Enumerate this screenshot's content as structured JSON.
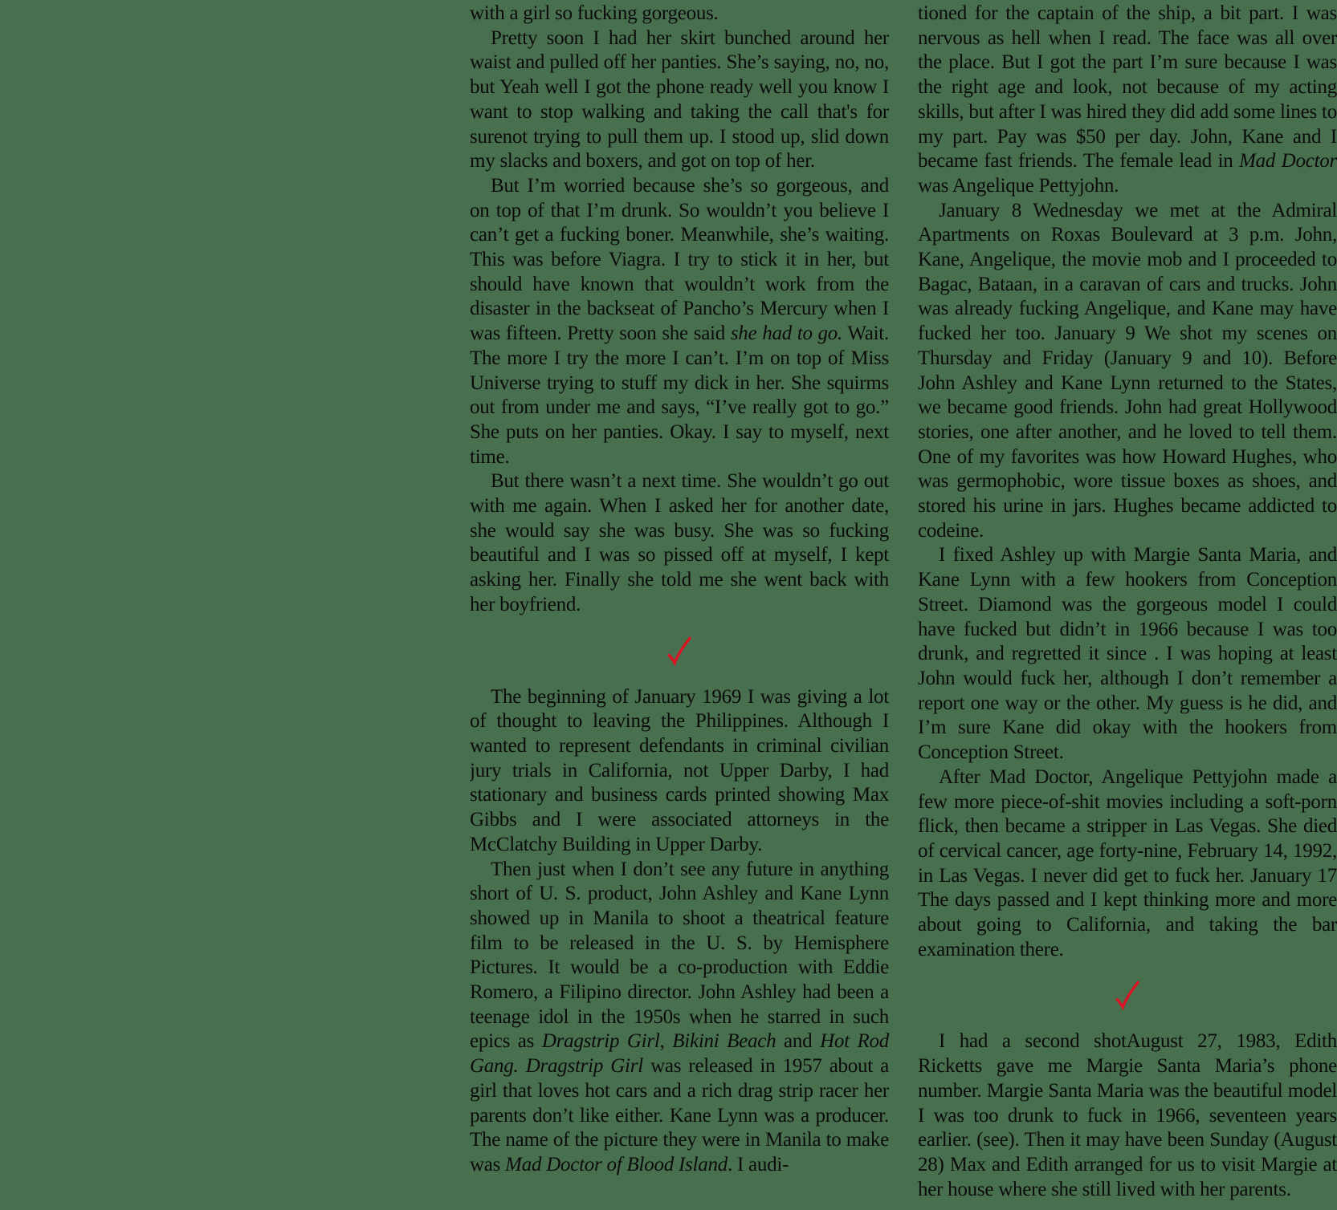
{
  "page": {
    "background_color": "#48704F",
    "text_color": "#0B0B0B",
    "checkmark_color": "#D91523",
    "checkmark_icon": "handwritten-red-checkmark"
  },
  "columns": {
    "left": {
      "blocks": [
        {
          "type": "paragraph",
          "indent": false,
          "segments": [
            {
              "text": "with a girl so fucking gorgeous."
            }
          ]
        },
        {
          "type": "paragraph",
          "indent": true,
          "segments": [
            {
              "text": "Pretty soon I had her skirt bunched around her waist and pulled off her panties. She’s saying, no, no, but Yeah well I got the phone ready well you know I want to stop walking and taking the call that's for surenot trying to pull them up. I stood up, slid down my slacks and boxers, and got on top of her."
            }
          ]
        },
        {
          "type": "paragraph",
          "indent": true,
          "segments": [
            {
              "text": "But I’m worried because she’s so gorgeous, and on top of that I’m drunk. So wouldn’t you believe I can’t get a fucking boner. Meanwhile, she’s waiting. This was before Viagra. I try to stick it in her, but should have known that wouldn’t work from the disaster in the backseat of Pancho’s Mercury when I was fifteen. Pretty soon she said "
            },
            {
              "text": "she had to go.",
              "italic": true
            },
            {
              "text": " Wait. The more I try the more I can’t. I’m on top of Miss Universe trying to stuff my dick in her. She squirms out from under me and says, “I’ve really got to go.” She puts on her panties. Okay. I say to myself, next time."
            }
          ]
        },
        {
          "type": "paragraph",
          "indent": true,
          "segments": [
            {
              "text": "But there wasn’t a next time. She wouldn’t go out with me again. When I asked her for another date, she would say she was busy. She was so fucking beautiful and I was so pissed off at myself, I kept asking her. Finally she told me she went back with her boyfriend."
            }
          ]
        },
        {
          "type": "checkmark-break"
        },
        {
          "type": "paragraph",
          "indent": true,
          "segments": [
            {
              "text": "The beginning of January 1969 I was giving a lot of thought to leaving the Philippines. Although I wanted to represent defendants in criminal civilian jury trials in California, not Upper Darby, I had stationary and business cards printed showing Max Gibbs and I were associated attorneys in the McClatchy Building in Upper Darby."
            }
          ]
        },
        {
          "type": "paragraph",
          "indent": true,
          "segments": [
            {
              "text": "Then just when I don’t see any future in anything short of U. S. product, John Ashley and Kane Lynn showed up in Manila to shoot a theatrical feature film to be released in the U. S. by Hemisphere Pictures. It would be a co-production with Eddie Romero, a Filipino director. John Ashley had been a teenage idol in the 1950s when he starred in such epics as "
            },
            {
              "text": "Dragstrip Girl",
              "italic": true
            },
            {
              "text": ", "
            },
            {
              "text": "Bikini Beach",
              "italic": true
            },
            {
              "text": " and "
            },
            {
              "text": "Hot Rod Gang. Dragstrip Girl",
              "italic": true
            },
            {
              "text": " was released in 1957 about a girl that loves hot cars and a rich drag strip racer her parents don’t like either. Kane Lynn was a producer. The name of the picture they were in Manila to make was "
            },
            {
              "text": "Mad Doctor of Blood Island",
              "italic": true
            },
            {
              "text": ". I audi-"
            }
          ]
        }
      ]
    },
    "right": {
      "blocks": [
        {
          "type": "paragraph",
          "indent": false,
          "segments": [
            {
              "text": "tioned for the captain of the ship, a bit part. I was nervous as hell when I read. The face was all over the place. But I got the part I’m sure because I was the right age and look, not because of my acting skills, but after I was hired they did add some lines to my part. Pay was $50 per day. John, Kane and I became fast friends. The female lead in "
            },
            {
              "text": "Mad Doctor",
              "italic": true
            },
            {
              "text": " was Angelique Pettyjohn."
            }
          ]
        },
        {
          "type": "paragraph",
          "indent": true,
          "segments": [
            {
              "text": "January 8 Wednesday we met at the Admiral Apartments on Roxas Boulevard at 3 p.m. John, Kane, Angelique, the movie mob and I proceeded to Bagac, Bataan, in a caravan of cars and trucks. John was already fucking Angelique, and Kane may have fucked her too. January 9 We shot my scenes on Thursday and Friday (January 9 and 10). Before John Ashley and Kane Lynn returned to the States, we became good friends. John had great Hollywood stories, one after another, and he loved to tell them. One of my favorites was how Howard Hughes, who was germophobic, wore tissue boxes as shoes, and stored his urine in jars. Hughes became addicted to codeine."
            }
          ]
        },
        {
          "type": "paragraph",
          "indent": true,
          "segments": [
            {
              "text": "I fixed Ashley up with Margie Santa Maria, and Kane Lynn with a few hookers from Conception Street. Diamond was the gorgeous model I could have fucked but didn’t in 1966 because I was too drunk, and regretted it since . I was hoping at least John would fuck her, although I don’t remember a report one way or the other. My guess is he did, and I’m sure Kane did okay with the hookers from Conception Street."
            }
          ]
        },
        {
          "type": "paragraph",
          "indent": true,
          "segments": [
            {
              "text": "After Mad Doctor, Angelique Pettyjohn made a few more piece-of-shit movies including a soft-porn flick, then became a stripper in Las Vegas. She died of cervical cancer, age forty-nine, February 14, 1992, in Las Vegas. I never did get to fuck her. January 17 The days passed and I kept thinking more and more about going to California, and taking the bar examination there."
            }
          ]
        },
        {
          "type": "checkmark-break"
        },
        {
          "type": "paragraph",
          "indent": true,
          "segments": [
            {
              "text": "I had a second shotAugust 27, 1983, Edith Ricketts gave me Margie Santa Maria’s phone number. Margie Santa Maria was the beautiful model I was too drunk to fuck in 1966, seventeen years earlier. (see). Then it may have been Sunday (August 28) Max and Edith arranged for us to visit Margie at her house where she still lived with her parents."
            }
          ]
        }
      ]
    }
  }
}
